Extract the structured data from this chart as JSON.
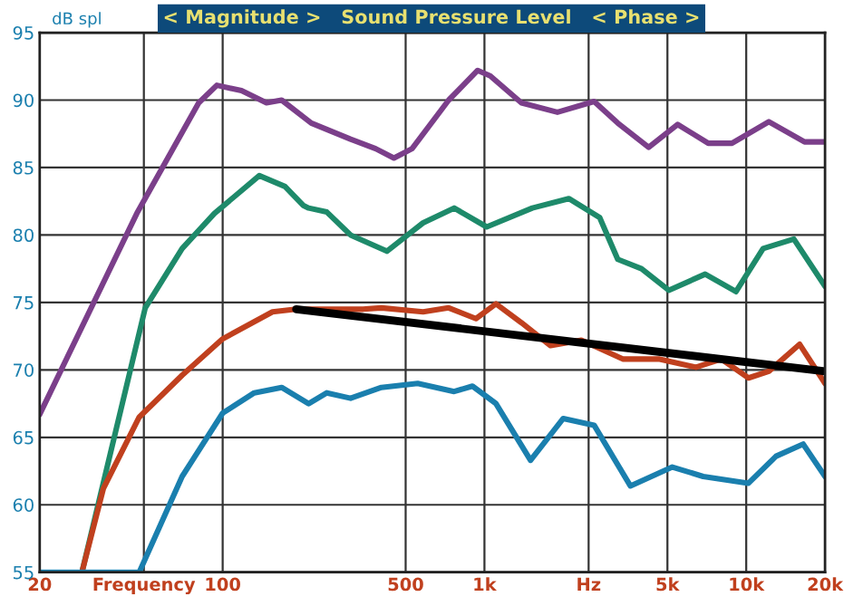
{
  "chart_data": {
    "type": "line",
    "title": "< Magnitude >   Sound Pressure Level   < Phase >",
    "ylabel": "dB spl",
    "log": "x",
    "xlim": [
      20,
      20000
    ],
    "xticks": [
      20,
      {
        "value": 50,
        "label": "Frequency"
      },
      100,
      500,
      {
        "value": 1000,
        "label": "1k"
      },
      {
        "value": 2500,
        "label": "Hz"
      },
      {
        "value": 5000,
        "label": "5k"
      },
      {
        "value": 10000,
        "label": "10k"
      },
      {
        "value": 20000,
        "label": "20k"
      }
    ],
    "ylim": [
      55,
      95
    ],
    "yticks": [
      55,
      60,
      65,
      70,
      75,
      80,
      85,
      90,
      95
    ],
    "grid": true,
    "line_style": "solid",
    "marker": "none",
    "series": [
      {
        "color": "#7b3f8a",
        "x": [
          20,
          47,
          81,
          95,
          118,
          147,
          168,
          218,
          308,
          384,
          451,
          529,
          730,
          942,
          1052,
          1384,
          1900,
          2624,
          3230,
          4240,
          5470,
          7160,
          8820,
          12200,
          16700,
          20000
        ],
        "values": [
          66.7,
          81.6,
          89.8,
          91.1,
          90.7,
          89.8,
          90.0,
          88.3,
          87.1,
          86.4,
          85.7,
          86.4,
          90.0,
          92.2,
          91.8,
          89.8,
          89.1,
          89.9,
          88.3,
          86.5,
          88.2,
          86.8,
          86.8,
          88.4,
          86.9,
          86.9
        ]
      },
      {
        "color": "#1e8a6a",
        "x": [
          29,
          50.6,
          70,
          93,
          138,
          173,
          203,
          213,
          250,
          308,
          424,
          583,
          766,
          1020,
          1524,
          2100,
          2754,
          3230,
          3980,
          5060,
          6970,
          9140,
          11600,
          15200,
          20000
        ],
        "values": [
          55,
          74.6,
          79.0,
          81.6,
          84.4,
          83.6,
          82.2,
          82.0,
          81.7,
          80.0,
          78.8,
          80.9,
          82.0,
          80.6,
          82.0,
          82.7,
          81.3,
          78.2,
          77.5,
          75.9,
          77.1,
          75.8,
          79.0,
          79.7,
          76.2
        ]
      },
      {
        "color": "#c0401e",
        "x": [
          29,
          35,
          48,
          70,
          100,
          155,
          191,
          344,
          404,
          583,
          730,
          928,
          1107,
          1384,
          1788,
          2345,
          3390,
          4670,
          6430,
          8040,
          10200,
          12200,
          16000,
          20000
        ],
        "values": [
          55,
          61.2,
          66.5,
          69.6,
          72.3,
          74.3,
          74.5,
          74.5,
          74.6,
          74.3,
          74.6,
          73.8,
          74.9,
          73.5,
          71.8,
          72.2,
          70.8,
          70.8,
          70.2,
          70.8,
          69.4,
          69.9,
          71.9,
          69.0
        ]
      },
      {
        "color": "#1a7fae",
        "x": [
          20,
          48,
          70,
          100,
          132,
          168,
          213,
          250,
          308,
          404,
          556,
          766,
          900,
          1107,
          1500,
          2000,
          2624,
          3610,
          5220,
          6850,
          10200,
          13000,
          16500,
          20000
        ],
        "values": [
          55,
          55,
          62.1,
          66.8,
          68.3,
          68.7,
          67.5,
          68.3,
          67.9,
          68.7,
          69.0,
          68.4,
          68.8,
          67.5,
          63.3,
          66.4,
          65.9,
          61.4,
          62.8,
          62.1,
          61.6,
          63.6,
          64.5,
          62.1
        ]
      },
      {
        "color": "#000000",
        "x": [
          191,
          20000
        ],
        "values": [
          74.5,
          69.9
        ]
      }
    ]
  }
}
